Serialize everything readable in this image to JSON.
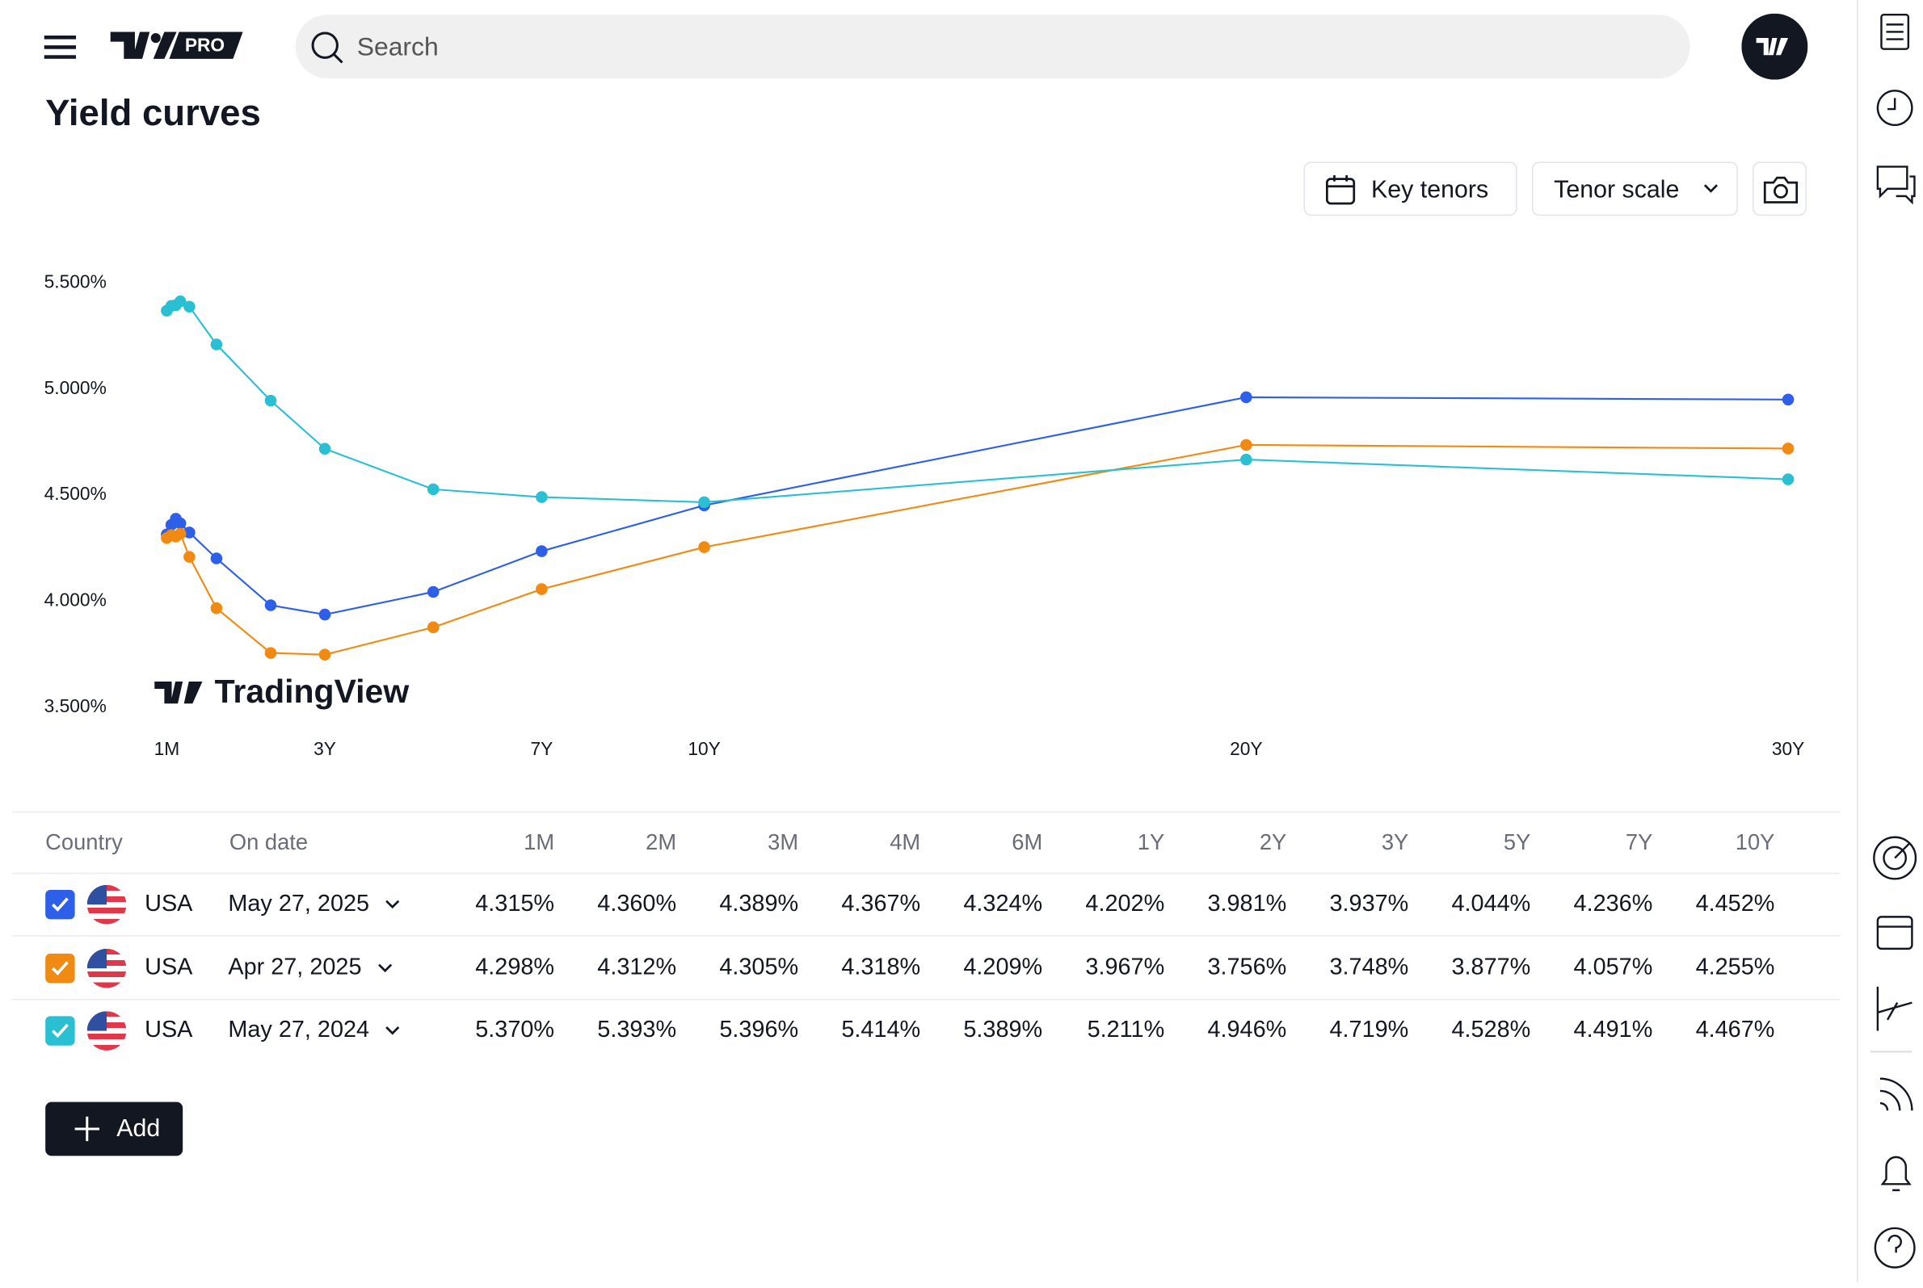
{
  "header": {
    "logo_badge": "PRO",
    "search_placeholder": "Search"
  },
  "page_title": "Yield curves",
  "toolbar": {
    "key_tenors": "Key tenors",
    "tenor_scale": "Tenor scale"
  },
  "watermark": "TradingView",
  "chart_data": {
    "type": "line",
    "x": [
      0.0833,
      0.1667,
      0.25,
      0.3333,
      0.5,
      1,
      2,
      3,
      5,
      7,
      10,
      20,
      30
    ],
    "xlim": [
      0.0833,
      30
    ],
    "xticks": [
      {
        "value": 0.0833,
        "label": "1M"
      },
      {
        "value": 3,
        "label": "3Y"
      },
      {
        "value": 7,
        "label": "7Y"
      },
      {
        "value": 10,
        "label": "10Y"
      },
      {
        "value": 20,
        "label": "20Y"
      },
      {
        "value": 30,
        "label": "30Y"
      }
    ],
    "ylim": [
      3.5,
      5.5
    ],
    "yticks": [
      {
        "value": 3.5,
        "label": "3.500%"
      },
      {
        "value": 4,
        "label": "4.000%"
      },
      {
        "value": 4.5,
        "label": "4.500%"
      },
      {
        "value": 5,
        "label": "5.000%"
      },
      {
        "value": 5.5,
        "label": "5.500%"
      }
    ],
    "series": [
      {
        "color": "#2d5fe8",
        "values": [
          4.315,
          4.36,
          4.389,
          4.367,
          4.324,
          4.202,
          3.981,
          3.937,
          4.044,
          4.236,
          4.452,
          4.962,
          4.951
        ]
      },
      {
        "color": "#f08a12",
        "values": [
          4.298,
          4.312,
          4.305,
          4.318,
          4.209,
          3.967,
          3.756,
          3.748,
          3.877,
          4.057,
          4.255,
          4.737,
          4.72
        ]
      },
      {
        "color": "#2bbfd3",
        "values": [
          5.37,
          5.393,
          5.396,
          5.414,
          5.389,
          5.211,
          4.946,
          4.719,
          4.528,
          4.491,
          4.467,
          4.668,
          4.575
        ]
      }
    ]
  },
  "table": {
    "columns": [
      "Country",
      "On date",
      "1M",
      "2M",
      "3M",
      "4M",
      "6M",
      "1Y",
      "2Y",
      "3Y",
      "5Y",
      "7Y",
      "10Y"
    ],
    "rows": [
      {
        "country": "USA",
        "date": "May 27, 2025",
        "values": [
          "4.315%",
          "4.360%",
          "4.389%",
          "4.367%",
          "4.324%",
          "4.202%",
          "3.981%",
          "3.937%",
          "4.044%",
          "4.236%",
          "4.452%"
        ]
      },
      {
        "country": "USA",
        "date": "Apr 27, 2025",
        "values": [
          "4.298%",
          "4.312%",
          "4.305%",
          "4.318%",
          "4.209%",
          "3.967%",
          "3.756%",
          "3.748%",
          "3.877%",
          "4.057%",
          "4.255%"
        ]
      },
      {
        "country": "USA",
        "date": "May 27, 2024",
        "values": [
          "5.370%",
          "5.393%",
          "5.396%",
          "5.414%",
          "5.389%",
          "5.211%",
          "4.946%",
          "4.719%",
          "4.528%",
          "4.491%",
          "4.467%"
        ]
      }
    ]
  },
  "add_button": "Add"
}
